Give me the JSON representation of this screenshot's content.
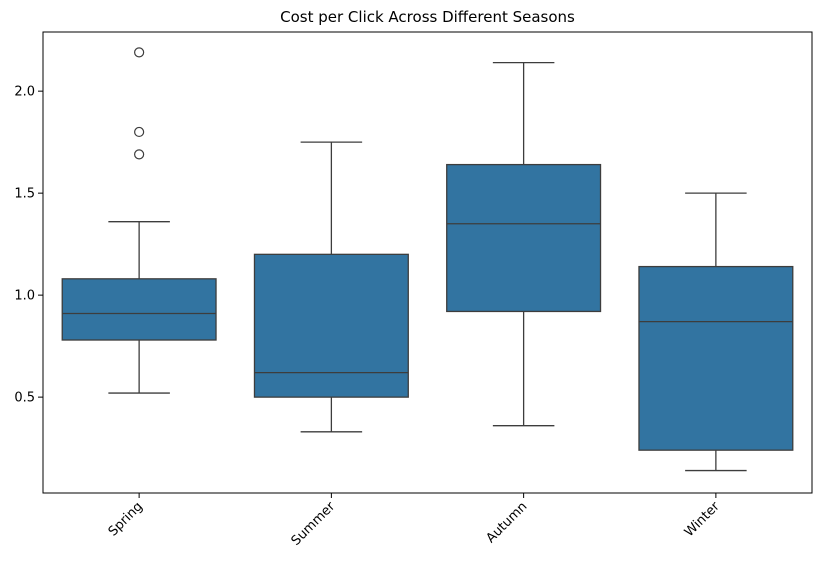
{
  "chart_data": {
    "type": "box",
    "title": "Cost per Click Across Different Seasons",
    "xlabel": "",
    "ylabel": "",
    "categories": [
      "Spring",
      "Summer",
      "Autumn",
      "Winter"
    ],
    "boxes": [
      {
        "category": "Spring",
        "whisker_low": 0.52,
        "q1": 0.78,
        "median": 0.91,
        "q3": 1.08,
        "whisker_high": 1.36,
        "outliers": [
          1.69,
          1.8,
          2.19
        ]
      },
      {
        "category": "Summer",
        "whisker_low": 0.33,
        "q1": 0.5,
        "median": 0.62,
        "q3": 1.2,
        "whisker_high": 1.75,
        "outliers": []
      },
      {
        "category": "Autumn",
        "whisker_low": 0.36,
        "q1": 0.92,
        "median": 1.35,
        "q3": 1.64,
        "whisker_high": 2.14,
        "outliers": []
      },
      {
        "category": "Winter",
        "whisker_low": 0.14,
        "q1": 0.24,
        "median": 0.87,
        "q3": 1.14,
        "whisker_high": 1.5,
        "outliers": []
      }
    ],
    "y_ticks": [
      0.5,
      1.0,
      1.5,
      2.0
    ],
    "ylim": [
      0.03,
      2.29
    ],
    "grid": false,
    "legend": "none",
    "box_color": "#3274a1",
    "line_color": "#3d3d3d",
    "tick_label_rotation_deg": 45
  }
}
